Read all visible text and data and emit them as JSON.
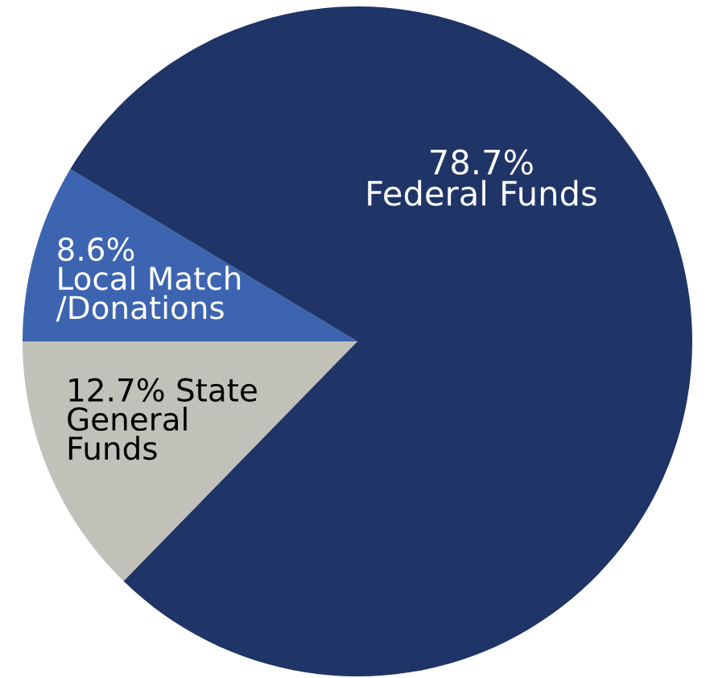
{
  "chart_data": {
    "type": "pie",
    "categories": [
      null,
      null,
      null
    ],
    "values": [
      8.6,
      12.7,
      78.7
    ],
    "colors": [
      "#3d64b0",
      "#c1c0b9",
      "#1f3467"
    ],
    "value_labels": [
      "8.6%\nLocal Match\n/Donations",
      "12.7% State\nGeneral\nFunds",
      "78.7%\nFederal Funds"
    ]
  }
}
